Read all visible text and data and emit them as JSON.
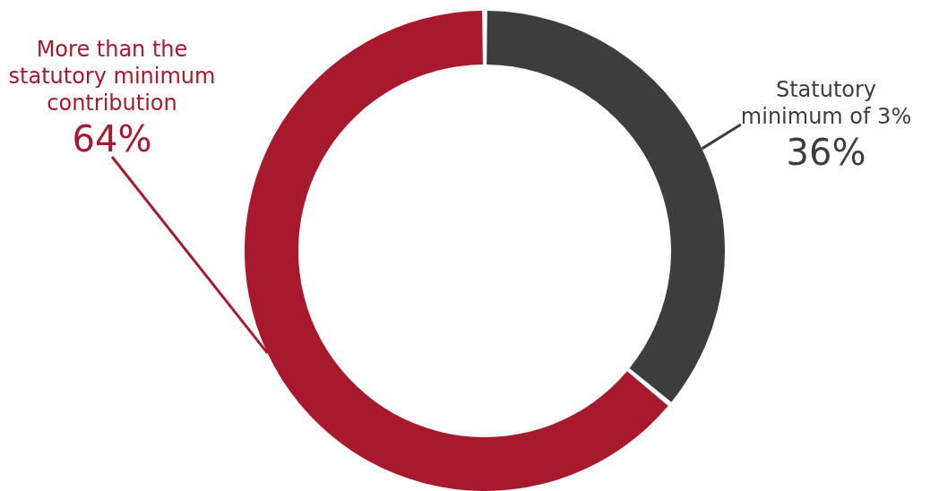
{
  "chart_data": {
    "type": "donut",
    "categories": [
      "Statutory minimum of 3%",
      "More than the statutory minimum contribution"
    ],
    "values": [
      36,
      64
    ],
    "colors": [
      "#3d3d3d",
      "#a8192e"
    ],
    "value_labels": [
      "36%",
      "64%"
    ],
    "legend": false
  }
}
